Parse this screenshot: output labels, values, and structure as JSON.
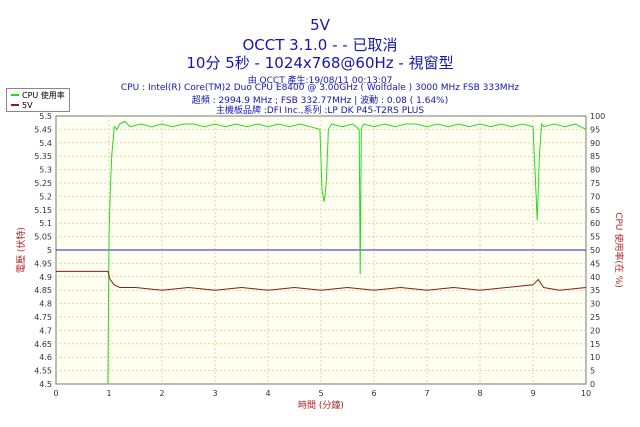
{
  "header": {
    "title": "5V",
    "subtitle": "OCCT 3.1.0 - - 已取消",
    "line3": "10分 5秒 - 1024x768@60Hz - 視窗型",
    "meta1": "由 OCCT 產生:19/08/11 00:13:07",
    "meta2": "CPU : Intel(R) Core(TM)2 Duo CPU E8400 @ 3.00GHz ( Wolfdale ) 3000 MHz FSB 333MHz",
    "meta3": "超頻 : 2994.9 MHz ; FSB 332.77MHz | 波動 : 0.08 ( 1.64%)",
    "meta4": "主機板品牌 :DFI Inc.,系列 :LP DK P45-T2RS PLUS"
  },
  "colors": {
    "cpu": "#22dd22",
    "volt": "#8b1a1a",
    "ref": "#2222cc",
    "axis_text": "#b52020",
    "grid": "#e6d3a0",
    "plot_bg": "#fffff2"
  },
  "chart_data": {
    "type": "line",
    "xlabel": "時間 (分鐘)",
    "ylabel_left": "電壓 (伏特)",
    "ylabel_right": "CPU 使用率(在 %)",
    "xlim": [
      0,
      10
    ],
    "ylim_left": [
      4.5,
      5.5
    ],
    "ylim_right": [
      0,
      100
    ],
    "x_ticks": [
      "0",
      "1",
      "2",
      "3",
      "4",
      "5",
      "6",
      "7",
      "8",
      "9",
      "10"
    ],
    "y_ticks_left": [
      "4.5",
      "4.55",
      "4.6",
      "4.65",
      "4.7",
      "4.75",
      "4.8",
      "4.85",
      "4.9",
      "4.95",
      "5",
      "5.05",
      "5.1",
      "5.15",
      "5.2",
      "5.25",
      "5.3",
      "5.35",
      "5.4",
      "5.45",
      "5.5"
    ],
    "y_ticks_right": [
      "0",
      "5",
      "10",
      "15",
      "20",
      "25",
      "30",
      "35",
      "40",
      "45",
      "50",
      "55",
      "60",
      "65",
      "70",
      "75",
      "80",
      "85",
      "90",
      "95",
      "100"
    ],
    "grid": true,
    "legend": "top-left",
    "reference_line": 5.0,
    "series": [
      {
        "name": "CPU 使用率",
        "axis": "right",
        "x": [
          0.98,
          1.0,
          1.02,
          1.05,
          1.1,
          1.15,
          1.2,
          1.3,
          1.4,
          1.6,
          1.8,
          2.0,
          2.2,
          2.4,
          2.6,
          2.8,
          3.0,
          3.2,
          3.4,
          3.6,
          3.8,
          4.0,
          4.2,
          4.4,
          4.6,
          4.8,
          4.98,
          5.02,
          5.06,
          5.1,
          5.14,
          5.2,
          5.4,
          5.6,
          5.72,
          5.74,
          5.76,
          5.8,
          6.0,
          6.2,
          6.4,
          6.6,
          6.8,
          7.0,
          7.2,
          7.4,
          7.6,
          7.8,
          8.0,
          8.2,
          8.4,
          8.6,
          8.8,
          9.0,
          9.04,
          9.08,
          9.12,
          9.16,
          9.2,
          9.4,
          9.6,
          9.8,
          10.0
        ],
        "values": [
          0,
          55,
          70,
          85,
          96,
          95,
          97,
          98,
          96,
          97,
          96,
          97,
          96,
          97,
          97,
          96,
          97,
          96,
          97,
          96,
          97,
          96,
          97,
          96,
          97,
          96,
          95,
          72,
          68,
          75,
          95,
          97,
          96,
          97,
          95,
          41,
          95,
          97,
          96,
          97,
          96,
          97,
          97,
          96,
          97,
          96,
          97,
          96,
          97,
          96,
          97,
          96,
          97,
          96,
          79,
          61,
          85,
          97,
          96,
          97,
          96,
          97,
          95
        ]
      },
      {
        "name": "5V",
        "axis": "left",
        "x": [
          0,
          0.5,
          0.98,
          1.02,
          1.1,
          1.2,
          1.5,
          2.0,
          2.5,
          3.0,
          3.5,
          4.0,
          4.5,
          5.0,
          5.5,
          6.0,
          6.5,
          7.0,
          7.5,
          8.0,
          8.5,
          9.0,
          9.1,
          9.2,
          9.5,
          10.0
        ],
        "values": [
          4.92,
          4.92,
          4.92,
          4.89,
          4.87,
          4.86,
          4.86,
          4.85,
          4.86,
          4.85,
          4.86,
          4.85,
          4.86,
          4.85,
          4.86,
          4.85,
          4.86,
          4.85,
          4.86,
          4.85,
          4.86,
          4.87,
          4.89,
          4.86,
          4.85,
          4.86
        ]
      }
    ]
  }
}
